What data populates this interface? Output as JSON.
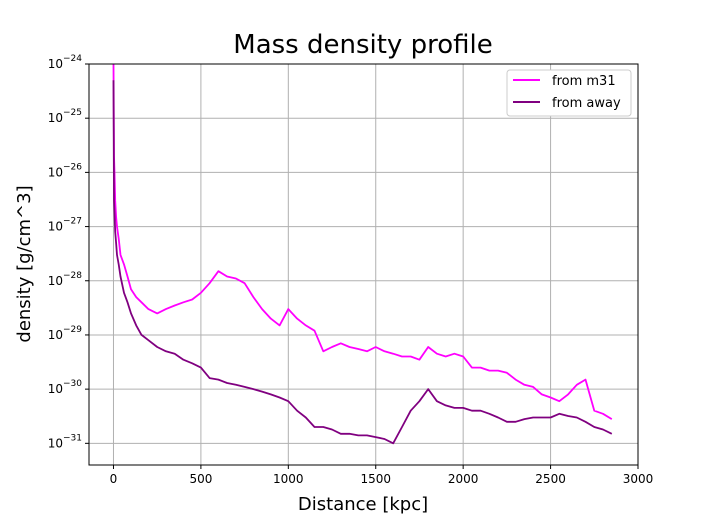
{
  "chart_data": {
    "type": "line",
    "title": "Mass density profile",
    "xlabel": "Distance [kpc]",
    "ylabel": "density [g/cm^3]",
    "xlim": [
      -140,
      3000
    ],
    "ylim_exponent": [
      -31.4,
      -24
    ],
    "yscale": "log",
    "grid": true,
    "legend_position": "top-right",
    "x_ticks": [
      0,
      500,
      1000,
      1500,
      2000,
      2500,
      3000
    ],
    "y_ticks": [
      {
        "exponent": -31,
        "label": "10",
        "sup": "−31"
      },
      {
        "exponent": -30,
        "label": "10",
        "sup": "−30"
      },
      {
        "exponent": -29,
        "label": "10",
        "sup": "−29"
      },
      {
        "exponent": -28,
        "label": "10",
        "sup": "−28"
      },
      {
        "exponent": -27,
        "label": "10",
        "sup": "−27"
      },
      {
        "exponent": -26,
        "label": "10",
        "sup": "−26"
      },
      {
        "exponent": -25,
        "label": "10",
        "sup": "−25"
      },
      {
        "exponent": -24,
        "label": "10",
        "sup": "−24"
      }
    ],
    "series": [
      {
        "name": "from m31",
        "color": "#ff00ff",
        "x": [
          0,
          3,
          6,
          10,
          15,
          20,
          30,
          40,
          60,
          80,
          100,
          130,
          160,
          200,
          250,
          300,
          350,
          400,
          450,
          500,
          550,
          600,
          650,
          700,
          750,
          800,
          850,
          900,
          950,
          1000,
          1050,
          1100,
          1150,
          1200,
          1250,
          1300,
          1350,
          1400,
          1450,
          1500,
          1550,
          1600,
          1650,
          1700,
          1750,
          1800,
          1850,
          1900,
          1950,
          2000,
          2050,
          2100,
          2150,
          2200,
          2250,
          2300,
          2350,
          2400,
          2450,
          2500,
          2550,
          2600,
          2650,
          2700,
          2750,
          2800,
          2850
        ],
        "y": [
          1e-24,
          2e-26,
          1e-26,
          3e-27,
          1.5e-27,
          1e-27,
          6e-28,
          3e-28,
          2e-28,
          1.2e-28,
          7e-29,
          5e-29,
          4e-29,
          3e-29,
          2.5e-29,
          3e-29,
          3.5e-29,
          4e-29,
          4.5e-29,
          6e-29,
          9e-29,
          1.5e-28,
          1.2e-28,
          1.1e-28,
          9e-29,
          5e-29,
          3e-29,
          2e-29,
          1.5e-29,
          3e-29,
          2e-29,
          1.5e-29,
          1.2e-29,
          5e-30,
          6e-30,
          7e-30,
          6e-30,
          5.5e-30,
          5e-30,
          6e-30,
          5e-30,
          4.5e-30,
          4e-30,
          4e-30,
          3.5e-30,
          6e-30,
          4.5e-30,
          4e-30,
          4.5e-30,
          4e-30,
          2.5e-30,
          2.5e-30,
          2.2e-30,
          2.2e-30,
          2e-30,
          1.5e-30,
          1.2e-30,
          1.1e-30,
          8e-31,
          7e-31,
          6e-31,
          8e-31,
          1.2e-30,
          1.5e-30,
          4e-31,
          3.5e-31,
          2.8e-31
        ]
      },
      {
        "name": "from away",
        "color": "#800080",
        "x": [
          0,
          3,
          6,
          10,
          15,
          20,
          30,
          40,
          60,
          80,
          100,
          130,
          160,
          200,
          250,
          300,
          350,
          400,
          450,
          500,
          550,
          600,
          650,
          700,
          750,
          800,
          850,
          900,
          950,
          1000,
          1050,
          1100,
          1150,
          1200,
          1250,
          1300,
          1350,
          1400,
          1450,
          1500,
          1550,
          1600,
          1650,
          1700,
          1750,
          1800,
          1850,
          1900,
          1950,
          2000,
          2050,
          2100,
          2150,
          2200,
          2250,
          2300,
          2350,
          2400,
          2450,
          2500,
          2550,
          2600,
          2650,
          2700,
          2750,
          2800,
          2850
        ],
        "y": [
          5e-25,
          3e-27,
          1.8e-27,
          8e-28,
          5e-28,
          3e-28,
          2e-28,
          1.2e-28,
          6e-29,
          4e-29,
          2.5e-29,
          1.5e-29,
          1e-29,
          8e-30,
          6e-30,
          5e-30,
          4.5e-30,
          3.5e-30,
          3e-30,
          2.5e-30,
          1.6e-30,
          1.5e-30,
          1.3e-30,
          1.2e-30,
          1.1e-30,
          1e-30,
          9e-31,
          8e-31,
          7e-31,
          6e-31,
          4e-31,
          3e-31,
          2e-31,
          2e-31,
          1.8e-31,
          1.5e-31,
          1.5e-31,
          1.4e-31,
          1.4e-31,
          1.3e-31,
          1.2e-31,
          1e-31,
          2e-31,
          4e-31,
          6e-31,
          1e-30,
          6e-31,
          5e-31,
          4.5e-31,
          4.5e-31,
          4e-31,
          4e-31,
          3.5e-31,
          3e-31,
          2.5e-31,
          2.5e-31,
          2.8e-31,
          3e-31,
          3e-31,
          3e-31,
          3.5e-31,
          3.2e-31,
          3e-31,
          2.5e-31,
          2e-31,
          1.8e-31,
          1.5e-31
        ]
      }
    ]
  }
}
